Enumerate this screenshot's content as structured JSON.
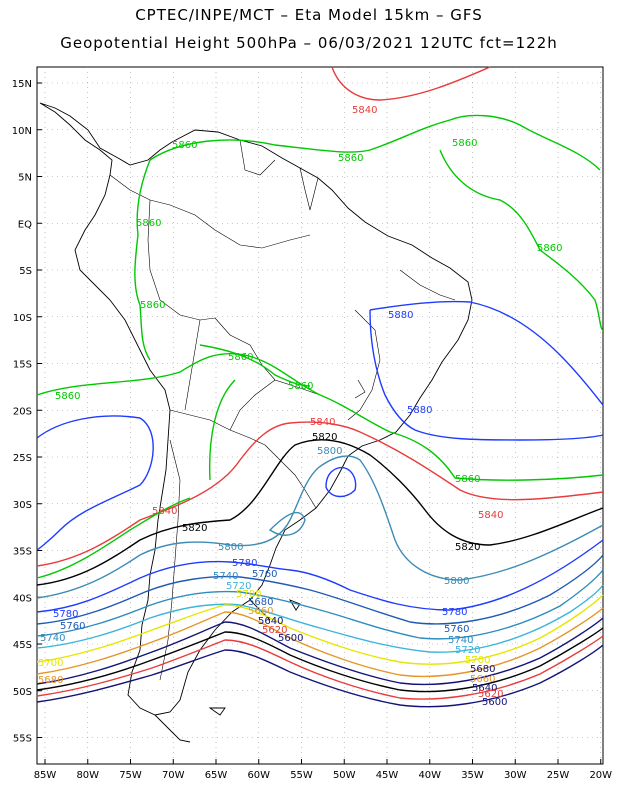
{
  "header": {
    "line1": "CPTEC/INPE/MCT –  Eta Model 15km – GFS",
    "line2": "Geopotential Height 500hPa – 06/03/2021 12UTC fct=122h"
  },
  "axes": {
    "lat_ticks": [
      "15N",
      "10N",
      "5N",
      "EQ",
      "5S",
      "10S",
      "15S",
      "20S",
      "25S",
      "30S",
      "35S",
      "40S",
      "45S",
      "50S",
      "55S"
    ],
    "lon_ticks": [
      "85W",
      "80W",
      "75W",
      "70W",
      "65W",
      "60W",
      "55W",
      "50W",
      "45W",
      "40W",
      "35W",
      "30W",
      "25W",
      "20W"
    ]
  },
  "colors": {
    "c5880": "#1e3cff",
    "c5860": "#00c800",
    "c5840": "#e83c3c",
    "c5820": "#000000",
    "c5800": "#3c8cb4",
    "c5780": "#1e3cff",
    "c5760": "#1e5ab4",
    "c5740": "#2e8cbe",
    "c5720": "#3cb4dc",
    "c5700": "#e6e600",
    "c5680": "#e69628",
    "c5660": "#141478",
    "c5640": "#000000",
    "c5620": "#e83c3c",
    "c5600": "#141478"
  },
  "contour_labels": [
    {
      "text": "5840",
      "color": "#e83c3c"
    },
    {
      "text": "5860",
      "color": "#00c800"
    },
    {
      "text": "5880",
      "color": "#1e3cff"
    },
    {
      "text": "5820",
      "color": "#000000"
    },
    {
      "text": "5800",
      "color": "#3c8cb4"
    },
    {
      "text": "5780",
      "color": "#1e3cff"
    },
    {
      "text": "5760",
      "color": "#1e5ab4"
    },
    {
      "text": "5740",
      "color": "#2e8cbe"
    },
    {
      "text": "5720",
      "color": "#3cb4dc"
    },
    {
      "text": "5700",
      "color": "#e6e600"
    },
    {
      "text": "5680",
      "color": "#e69628"
    },
    {
      "text": "5660",
      "color": "#141478"
    },
    {
      "text": "5640",
      "color": "#000000"
    },
    {
      "text": "5620",
      "color": "#e83c3c"
    },
    {
      "text": "5600",
      "color": "#141478"
    }
  ]
}
